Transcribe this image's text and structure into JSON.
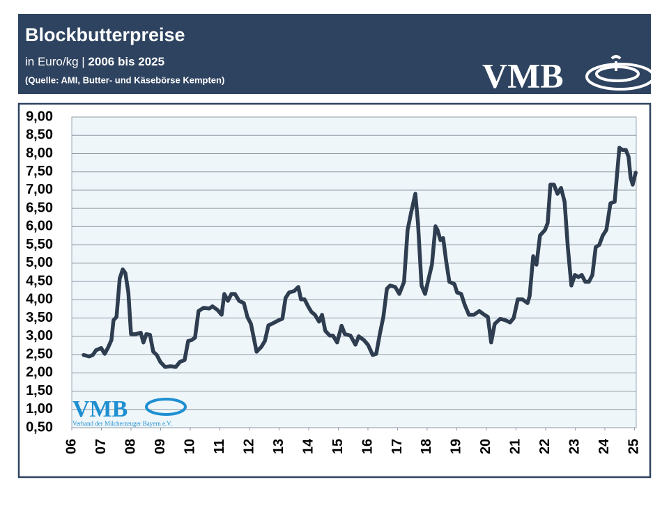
{
  "header": {
    "title": "Blockbutterpreise",
    "subtitle": "in Euro/kg |",
    "subtitle_bold": "2006 bis 2025",
    "source": "(Quelle: AMI, Butter- und Käsebörse Kempten)",
    "logo": "VMB"
  },
  "watermark": {
    "logo": "VMB",
    "caption": "Verband der Milcherzeuger Bayern e.V."
  },
  "chart_data": {
    "type": "line",
    "xlim": [
      2006,
      2025.06
    ],
    "ylim": [
      0.5,
      9.0
    ],
    "xticks": [
      {
        "value": 2006,
        "label": "06"
      },
      {
        "value": 2007,
        "label": "07"
      },
      {
        "value": 2008,
        "label": "08"
      },
      {
        "value": 2009,
        "label": "09"
      },
      {
        "value": 2010,
        "label": "10"
      },
      {
        "value": 2011,
        "label": "11"
      },
      {
        "value": 2012,
        "label": "12"
      },
      {
        "value": 2013,
        "label": "13"
      },
      {
        "value": 2014,
        "label": "14"
      },
      {
        "value": 2015,
        "label": "15"
      },
      {
        "value": 2016,
        "label": "16"
      },
      {
        "value": 2017,
        "label": "17"
      },
      {
        "value": 2018,
        "label": "18"
      },
      {
        "value": 2019,
        "label": "19"
      },
      {
        "value": 2020,
        "label": "20"
      },
      {
        "value": 2021,
        "label": "21"
      },
      {
        "value": 2022,
        "label": "22"
      },
      {
        "value": 2023,
        "label": "23"
      },
      {
        "value": 2024,
        "label": "24"
      },
      {
        "value": 2025,
        "label": "25"
      }
    ],
    "yticks": [
      {
        "value": 0.5,
        "label": "0,50"
      },
      {
        "value": 1.0,
        "label": "1,00"
      },
      {
        "value": 1.5,
        "label": "1,50"
      },
      {
        "value": 2.0,
        "label": "2,00"
      },
      {
        "value": 2.5,
        "label": "2,50"
      },
      {
        "value": 3.0,
        "label": "3,00"
      },
      {
        "value": 3.5,
        "label": "3,50"
      },
      {
        "value": 4.0,
        "label": "4,00"
      },
      {
        "value": 4.5,
        "label": "4,50"
      },
      {
        "value": 5.0,
        "label": "5,00"
      },
      {
        "value": 5.5,
        "label": "5,50"
      },
      {
        "value": 6.0,
        "label": "6,00"
      },
      {
        "value": 6.5,
        "label": "6,50"
      },
      {
        "value": 7.0,
        "label": "7,00"
      },
      {
        "value": 7.5,
        "label": "7,50"
      },
      {
        "value": 8.0,
        "label": "8,00"
      },
      {
        "value": 8.5,
        "label": "8,50"
      },
      {
        "value": 9.0,
        "label": "9,00"
      }
    ],
    "grid": true,
    "color": "#2f3d50",
    "x": [
      2006.4,
      2006.59,
      2006.71,
      2006.82,
      2006.99,
      2007.11,
      2007.22,
      2007.34,
      2007.41,
      2007.51,
      2007.62,
      2007.72,
      2007.81,
      2007.91,
      2008.0,
      2008.16,
      2008.33,
      2008.42,
      2008.52,
      2008.64,
      2008.75,
      2008.87,
      2008.99,
      2009.15,
      2009.34,
      2009.51,
      2009.65,
      2009.81,
      2009.93,
      2010.05,
      2010.16,
      2010.28,
      2010.45,
      2010.64,
      2010.75,
      2010.92,
      2011.06,
      2011.15,
      2011.27,
      2011.39,
      2011.51,
      2011.65,
      2011.81,
      2011.93,
      2012.05,
      2012.24,
      2012.4,
      2012.52,
      2012.64,
      2012.75,
      2012.99,
      2013.11,
      2013.22,
      2013.34,
      2013.51,
      2013.65,
      2013.74,
      2013.86,
      2013.98,
      2014.09,
      2014.21,
      2014.35,
      2014.45,
      2014.56,
      2014.71,
      2014.82,
      2014.96,
      2015.11,
      2015.22,
      2015.41,
      2015.58,
      2015.69,
      2015.86,
      2016.0,
      2016.16,
      2016.28,
      2016.4,
      2016.52,
      2016.64,
      2016.75,
      2016.92,
      2017.06,
      2017.22,
      2017.34,
      2017.46,
      2017.6,
      2017.69,
      2017.81,
      2017.93,
      2018.05,
      2018.16,
      2018.28,
      2018.35,
      2018.45,
      2018.54,
      2018.64,
      2018.75,
      2018.92,
      2019.01,
      2019.15,
      2019.27,
      2019.41,
      2019.58,
      2019.76,
      2019.93,
      2020.05,
      2020.16,
      2020.28,
      2020.47,
      2020.64,
      2020.8,
      2020.92,
      2021.06,
      2021.22,
      2021.39,
      2021.46,
      2021.58,
      2021.69,
      2021.81,
      2021.98,
      2022.07,
      2022.16,
      2022.28,
      2022.4,
      2022.52,
      2022.64,
      2022.75,
      2022.87,
      2022.99,
      2023.11,
      2023.22,
      2023.34,
      2023.46,
      2023.58,
      2023.69,
      2023.81,
      2023.93,
      2024.05,
      2024.19,
      2024.33,
      2024.49,
      2024.59,
      2024.71,
      2024.8,
      2024.87,
      2024.94,
      2025.04
    ],
    "values": [
      2.49,
      2.45,
      2.49,
      2.62,
      2.68,
      2.52,
      2.68,
      2.9,
      3.44,
      3.53,
      4.58,
      4.83,
      4.73,
      4.2,
      3.06,
      3.06,
      3.1,
      2.83,
      3.06,
      3.04,
      2.58,
      2.49,
      2.3,
      2.16,
      2.18,
      2.16,
      2.3,
      2.35,
      2.87,
      2.9,
      2.96,
      3.69,
      3.78,
      3.76,
      3.82,
      3.72,
      3.59,
      4.16,
      3.97,
      4.16,
      4.16,
      3.97,
      3.91,
      3.53,
      3.34,
      2.58,
      2.71,
      2.87,
      3.3,
      3.34,
      3.44,
      3.48,
      4.05,
      4.2,
      4.24,
      4.35,
      4.01,
      4.01,
      3.82,
      3.67,
      3.59,
      3.4,
      3.59,
      3.15,
      3.02,
      3.02,
      2.83,
      3.29,
      3.06,
      3.02,
      2.77,
      3.0,
      2.9,
      2.77,
      2.49,
      2.52,
      3.06,
      3.53,
      4.3,
      4.39,
      4.35,
      4.16,
      4.49,
      5.91,
      6.39,
      6.9,
      6.1,
      4.39,
      4.16,
      4.58,
      4.96,
      6.01,
      5.91,
      5.63,
      5.69,
      5.06,
      4.49,
      4.43,
      4.2,
      4.16,
      3.86,
      3.59,
      3.59,
      3.69,
      3.59,
      3.53,
      2.83,
      3.34,
      3.48,
      3.44,
      3.38,
      3.5,
      4.01,
      4.01,
      3.91,
      4.1,
      5.19,
      4.96,
      5.76,
      5.91,
      6.1,
      7.15,
      7.15,
      6.9,
      7.06,
      6.68,
      5.44,
      4.39,
      4.68,
      4.62,
      4.68,
      4.49,
      4.49,
      4.68,
      5.44,
      5.5,
      5.76,
      5.91,
      6.64,
      6.68,
      8.16,
      8.1,
      8.1,
      7.91,
      7.34,
      7.15,
      7.48
    ]
  }
}
